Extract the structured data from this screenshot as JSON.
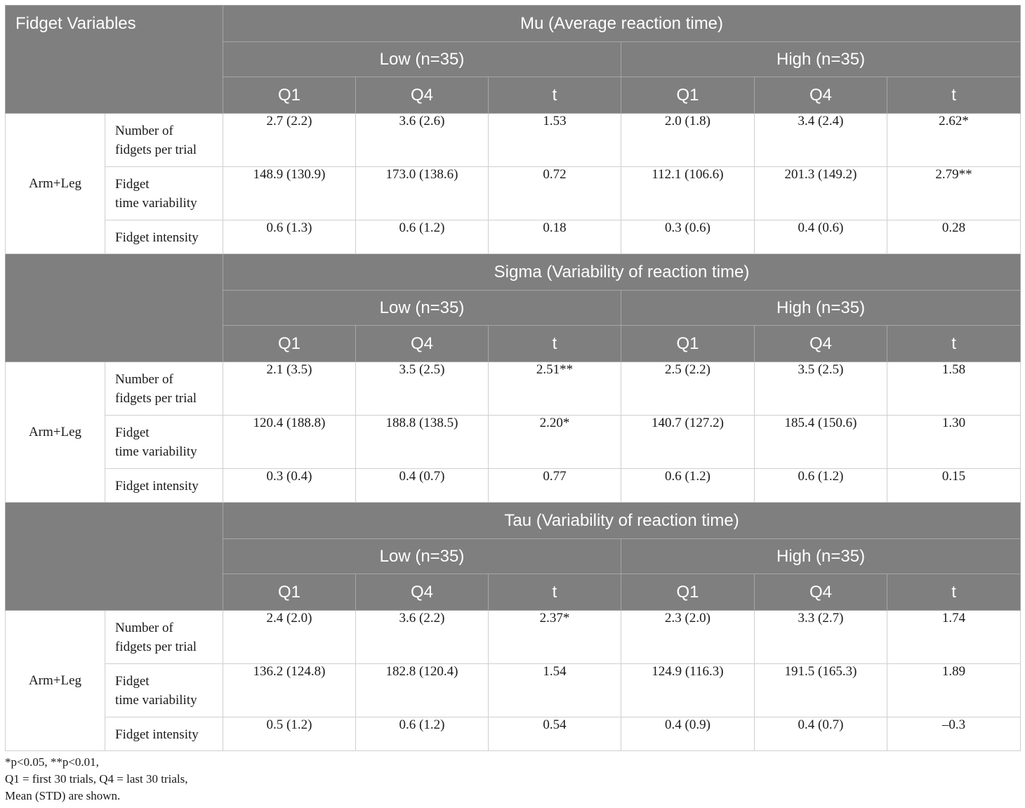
{
  "corner_label": "Fidget Variables",
  "group_label_low": "Low (n=35)",
  "group_label_high": "High (n=35)",
  "col_q1": "Q1",
  "col_q4": "Q4",
  "col_t": "t",
  "row_group": "Arm+Leg",
  "sections": [
    {
      "title": "Mu (Average reaction time)",
      "rows": [
        {
          "label_1": "Number of",
          "label_2": "fidgets per trial",
          "cells": [
            "2.7 (2.2)",
            "3.6 (2.6)",
            "1.53",
            "2.0 (1.8)",
            "3.4 (2.4)",
            "2.62*"
          ]
        },
        {
          "label_1": "Fidget",
          "label_2": "time variability",
          "cells": [
            "148.9 (130.9)",
            "173.0 (138.6)",
            "0.72",
            "112.1 (106.6)",
            "201.3 (149.2)",
            "2.79**"
          ]
        },
        {
          "label_1": "Fidget intensity",
          "label_2": "",
          "cells": [
            "0.6 (1.3)",
            "0.6 (1.2)",
            "0.18",
            "0.3 (0.6)",
            "0.4 (0.6)",
            "0.28"
          ]
        }
      ]
    },
    {
      "title": "Sigma (Variability of reaction time)",
      "rows": [
        {
          "label_1": "Number of",
          "label_2": "fidgets per trial",
          "cells": [
            "2.1 (3.5)",
            "3.5 (2.5)",
            "2.51**",
            "2.5 (2.2)",
            "3.5 (2.5)",
            "1.58"
          ]
        },
        {
          "label_1": "Fidget",
          "label_2": "time variability",
          "cells": [
            "120.4 (188.8)",
            "188.8 (138.5)",
            "2.20*",
            "140.7 (127.2)",
            "185.4 (150.6)",
            "1.30"
          ]
        },
        {
          "label_1": "Fidget intensity",
          "label_2": "",
          "cells": [
            "0.3 (0.4)",
            "0.4 (0.7)",
            "0.77",
            "0.6 (1.2)",
            "0.6 (1.2)",
            "0.15"
          ]
        }
      ]
    },
    {
      "title": "Tau (Variability of reaction time)",
      "rows": [
        {
          "label_1": "Number of",
          "label_2": "fidgets per trial",
          "cells": [
            "2.4 (2.0)",
            "3.6 (2.2)",
            "2.37*",
            "2.3 (2.0)",
            "3.3 (2.7)",
            "1.74"
          ]
        },
        {
          "label_1": "Fidget",
          "label_2": "time variability",
          "cells": [
            "136.2 (124.8)",
            "182.8 (120.4)",
            "1.54",
            "124.9 (116.3)",
            "191.5 (165.3)",
            "1.89"
          ]
        },
        {
          "label_1": "Fidget intensity",
          "label_2": "",
          "cells": [
            "0.5 (1.2)",
            "0.6 (1.2)",
            "0.54",
            "0.4 (0.9)",
            "0.4 (0.7)",
            "–0.3"
          ]
        }
      ]
    }
  ],
  "footnotes": [
    "*p<0.05, **p<0.01,",
    "Q1 = first 30 trials, Q4 = last 30 trials,",
    "Mean (STD) are shown."
  ]
}
